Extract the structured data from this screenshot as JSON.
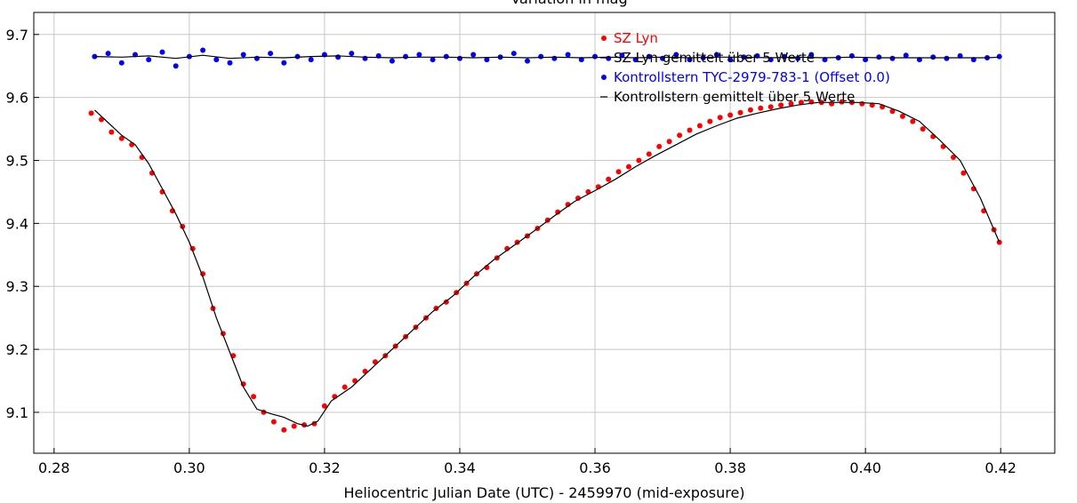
{
  "chart_data": {
    "type": "scatter",
    "title": "Variation in mag",
    "xlabel": "Heliocentric Julian Date (UTC) - 2459970 (mid-exposure)",
    "ylabel": "",
    "xlim": [
      0.277,
      0.428
    ],
    "ylim": [
      9.735,
      9.035
    ],
    "y_inverted": true,
    "grid": true,
    "legend_position": "top-right",
    "x_ticks": [
      0.28,
      0.3,
      0.32,
      0.34,
      0.36,
      0.38,
      0.4,
      0.42
    ],
    "x_tick_labels": [
      "0.28",
      "0.30",
      "0.32",
      "0.34",
      "0.36",
      "0.38",
      "0.40",
      "0.42"
    ],
    "y_ticks": [
      9.1,
      9.2,
      9.3,
      9.4,
      9.5,
      9.6,
      9.7
    ],
    "y_tick_labels": [
      "9.1",
      "9.2",
      "9.3",
      "9.4",
      "9.5",
      "9.6",
      "9.7"
    ],
    "series": [
      {
        "name": "SZ Lyn",
        "kind": "points",
        "color": "#ff0000",
        "x": [
          0.2855,
          0.287,
          0.2885,
          0.29,
          0.2915,
          0.293,
          0.2945,
          0.296,
          0.2975,
          0.299,
          0.3005,
          0.302,
          0.3035,
          0.305,
          0.3065,
          0.308,
          0.3095,
          0.311,
          0.3125,
          0.314,
          0.3155,
          0.317,
          0.3185,
          0.32,
          0.3215,
          0.323,
          0.3245,
          0.326,
          0.3275,
          0.329,
          0.3305,
          0.332,
          0.3335,
          0.335,
          0.3365,
          0.338,
          0.3395,
          0.341,
          0.3425,
          0.344,
          0.3455,
          0.347,
          0.3485,
          0.35,
          0.3515,
          0.353,
          0.3545,
          0.356,
          0.3575,
          0.359,
          0.3605,
          0.362,
          0.3635,
          0.365,
          0.3665,
          0.368,
          0.3695,
          0.371,
          0.3725,
          0.374,
          0.3755,
          0.377,
          0.3785,
          0.38,
          0.3815,
          0.383,
          0.3845,
          0.386,
          0.3875,
          0.389,
          0.3905,
          0.392,
          0.3935,
          0.395,
          0.3965,
          0.398,
          0.3995,
          0.401,
          0.4025,
          0.404,
          0.4055,
          0.407,
          0.4085,
          0.41,
          0.4115,
          0.413,
          0.4145,
          0.416,
          0.4175,
          0.419,
          0.4198
        ],
        "y": [
          9.575,
          9.565,
          9.545,
          9.535,
          9.525,
          9.505,
          9.48,
          9.45,
          9.42,
          9.395,
          9.36,
          9.32,
          9.265,
          9.225,
          9.19,
          9.145,
          9.125,
          9.1,
          9.085,
          9.072,
          9.078,
          9.08,
          9.082,
          9.11,
          9.125,
          9.14,
          9.15,
          9.165,
          9.18,
          9.19,
          9.205,
          9.22,
          9.235,
          9.25,
          9.265,
          9.275,
          9.29,
          9.305,
          9.32,
          9.33,
          9.345,
          9.36,
          9.37,
          9.38,
          9.392,
          9.405,
          9.418,
          9.43,
          9.44,
          9.45,
          9.458,
          9.47,
          9.482,
          9.49,
          9.5,
          9.51,
          9.522,
          9.53,
          9.54,
          9.548,
          9.555,
          9.562,
          9.568,
          9.572,
          9.576,
          9.58,
          9.583,
          9.585,
          9.588,
          9.59,
          9.592,
          9.593,
          9.592,
          9.59,
          9.593,
          9.592,
          9.59,
          9.588,
          9.585,
          9.578,
          9.57,
          9.562,
          9.55,
          9.538,
          9.522,
          9.505,
          9.48,
          9.455,
          9.42,
          9.39,
          9.37
        ]
      },
      {
        "name": "SZ Lyn  gemittelt über 5 Werte",
        "kind": "line",
        "color": "#000000",
        "x": [
          0.286,
          0.288,
          0.29,
          0.292,
          0.294,
          0.296,
          0.298,
          0.3,
          0.302,
          0.304,
          0.306,
          0.308,
          0.31,
          0.312,
          0.314,
          0.316,
          0.3175,
          0.319,
          0.321,
          0.324,
          0.327,
          0.33,
          0.333,
          0.336,
          0.339,
          0.342,
          0.345,
          0.348,
          0.351,
          0.354,
          0.357,
          0.36,
          0.363,
          0.366,
          0.369,
          0.372,
          0.375,
          0.378,
          0.381,
          0.384,
          0.387,
          0.39,
          0.393,
          0.396,
          0.399,
          0.402,
          0.405,
          0.408,
          0.411,
          0.414,
          0.417,
          0.4198
        ],
        "y": [
          9.58,
          9.56,
          9.54,
          9.525,
          9.495,
          9.455,
          9.415,
          9.37,
          9.315,
          9.25,
          9.195,
          9.14,
          9.105,
          9.098,
          9.092,
          9.082,
          9.078,
          9.086,
          9.118,
          9.14,
          9.17,
          9.2,
          9.23,
          9.26,
          9.285,
          9.315,
          9.342,
          9.365,
          9.388,
          9.412,
          9.435,
          9.452,
          9.47,
          9.49,
          9.508,
          9.525,
          9.542,
          9.555,
          9.567,
          9.575,
          9.582,
          9.588,
          9.592,
          9.592,
          9.592,
          9.59,
          9.578,
          9.562,
          9.532,
          9.5,
          9.44,
          9.37
        ]
      },
      {
        "name": "Kontrollstern TYC-2979-783-1  (Offset 0.0)",
        "kind": "points",
        "color": "#0000ff",
        "x": [
          0.286,
          0.288,
          0.29,
          0.292,
          0.294,
          0.296,
          0.298,
          0.3,
          0.302,
          0.304,
          0.306,
          0.308,
          0.31,
          0.312,
          0.314,
          0.316,
          0.318,
          0.32,
          0.322,
          0.324,
          0.326,
          0.328,
          0.33,
          0.332,
          0.334,
          0.336,
          0.338,
          0.34,
          0.342,
          0.344,
          0.346,
          0.348,
          0.35,
          0.352,
          0.354,
          0.356,
          0.358,
          0.36,
          0.362,
          0.364,
          0.366,
          0.368,
          0.37,
          0.372,
          0.374,
          0.376,
          0.378,
          0.38,
          0.382,
          0.384,
          0.386,
          0.388,
          0.39,
          0.392,
          0.394,
          0.396,
          0.398,
          0.4,
          0.402,
          0.404,
          0.406,
          0.408,
          0.41,
          0.412,
          0.414,
          0.416,
          0.418,
          0.4198
        ],
        "y": [
          9.665,
          9.67,
          9.655,
          9.668,
          9.66,
          9.672,
          9.65,
          9.665,
          9.675,
          9.66,
          9.655,
          9.668,
          9.662,
          9.67,
          9.655,
          9.665,
          9.66,
          9.668,
          9.664,
          9.67,
          9.662,
          9.666,
          9.658,
          9.665,
          9.668,
          9.66,
          9.665,
          9.662,
          9.668,
          9.66,
          9.664,
          9.67,
          9.658,
          9.665,
          9.662,
          9.668,
          9.66,
          9.665,
          9.662,
          9.667,
          9.66,
          9.665,
          9.662,
          9.668,
          9.66,
          9.663,
          9.668,
          9.66,
          9.664,
          9.666,
          9.66,
          9.665,
          9.662,
          9.668,
          9.66,
          9.663,
          9.666,
          9.66,
          9.664,
          9.662,
          9.667,
          9.66,
          9.664,
          9.662,
          9.666,
          9.66,
          9.663,
          9.665
        ]
      },
      {
        "name": "Kontrollstern  gemittelt über 5 Werte",
        "kind": "line",
        "color": "#000000",
        "x": [
          0.286,
          0.29,
          0.294,
          0.298,
          0.302,
          0.306,
          0.31,
          0.314,
          0.318,
          0.322,
          0.326,
          0.33,
          0.334,
          0.338,
          0.342,
          0.346,
          0.35,
          0.354,
          0.358,
          0.362,
          0.366,
          0.37,
          0.374,
          0.378,
          0.382,
          0.386,
          0.39,
          0.394,
          0.398,
          0.402,
          0.406,
          0.41,
          0.414,
          0.418,
          0.4198
        ],
        "y": [
          9.665,
          9.664,
          9.666,
          9.662,
          9.667,
          9.662,
          9.664,
          9.663,
          9.665,
          9.666,
          9.664,
          9.663,
          9.664,
          9.664,
          9.663,
          9.664,
          9.663,
          9.664,
          9.663,
          9.664,
          9.663,
          9.664,
          9.663,
          9.664,
          9.664,
          9.663,
          9.664,
          9.663,
          9.664,
          9.663,
          9.663,
          9.663,
          9.663,
          9.663,
          9.664
        ]
      }
    ]
  }
}
